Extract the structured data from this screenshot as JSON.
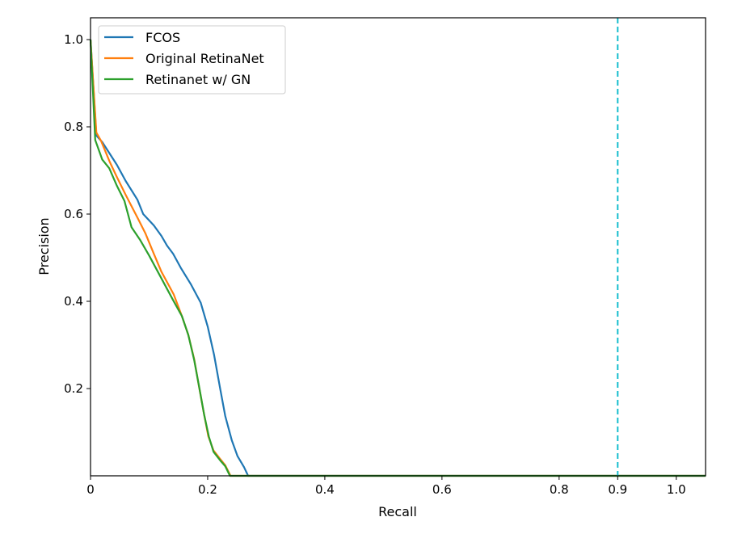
{
  "chart_data": {
    "type": "line",
    "xlabel": "Recall",
    "ylabel": "Precision",
    "xlim": [
      0,
      1.05
    ],
    "ylim": [
      0,
      1.05
    ],
    "xticks": [
      "0",
      "0.2",
      "0.4",
      "0.6",
      "0.8",
      "0.9",
      "1.0"
    ],
    "xtick_values": [
      0,
      0.2,
      0.4,
      0.6,
      0.8,
      0.9,
      1.0
    ],
    "yticks": [
      "0.2",
      "0.4",
      "0.6",
      "0.8",
      "1.0"
    ],
    "ytick_values": [
      0.2,
      0.4,
      0.6,
      0.8,
      1.0
    ],
    "grid": false,
    "legend_position": "top-left",
    "vline": {
      "x": 0.9,
      "color": "#17becf",
      "style": "dashed"
    },
    "series": [
      {
        "name": "FCOS",
        "color": "#1f77b4",
        "x": [
          0,
          0.01,
          0.02,
          0.032,
          0.045,
          0.06,
          0.08,
          0.09,
          0.108,
          0.121,
          0.131,
          0.141,
          0.154,
          0.171,
          0.188,
          0.2,
          0.211,
          0.221,
          0.23,
          0.241,
          0.251,
          0.262,
          0.269,
          1.05
        ],
        "y": [
          1.0,
          0.78,
          0.765,
          0.74,
          0.713,
          0.676,
          0.633,
          0.6,
          0.574,
          0.55,
          0.527,
          0.509,
          0.477,
          0.44,
          0.397,
          0.342,
          0.277,
          0.202,
          0.137,
          0.082,
          0.045,
          0.02,
          0,
          0
        ]
      },
      {
        "name": "Original RetinaNet",
        "color": "#ff7f0e",
        "x": [
          0,
          0.01,
          0.018,
          0.032,
          0.045,
          0.06,
          0.08,
          0.094,
          0.108,
          0.121,
          0.142,
          0.156,
          0.167,
          0.177,
          0.185,
          0.193,
          0.201,
          0.21,
          0.221,
          0.23,
          0.239,
          1.05
        ],
        "y": [
          1.0,
          0.787,
          0.768,
          0.722,
          0.685,
          0.644,
          0.592,
          0.555,
          0.509,
          0.468,
          0.416,
          0.366,
          0.323,
          0.267,
          0.206,
          0.147,
          0.091,
          0.058,
          0.039,
          0.024,
          0,
          0
        ]
      },
      {
        "name": "Retinanet w/ GN",
        "color": "#2ca02c",
        "x": [
          0,
          0.008,
          0.02,
          0.032,
          0.045,
          0.058,
          0.07,
          0.085,
          0.1,
          0.12,
          0.14,
          0.156,
          0.167,
          0.177,
          0.186,
          0.194,
          0.202,
          0.21,
          0.221,
          0.23,
          0.238,
          1.05
        ],
        "y": [
          1.0,
          0.77,
          0.725,
          0.705,
          0.665,
          0.63,
          0.57,
          0.54,
          0.505,
          0.455,
          0.405,
          0.366,
          0.323,
          0.265,
          0.2,
          0.14,
          0.09,
          0.055,
          0.036,
          0.022,
          0,
          0
        ]
      }
    ]
  }
}
